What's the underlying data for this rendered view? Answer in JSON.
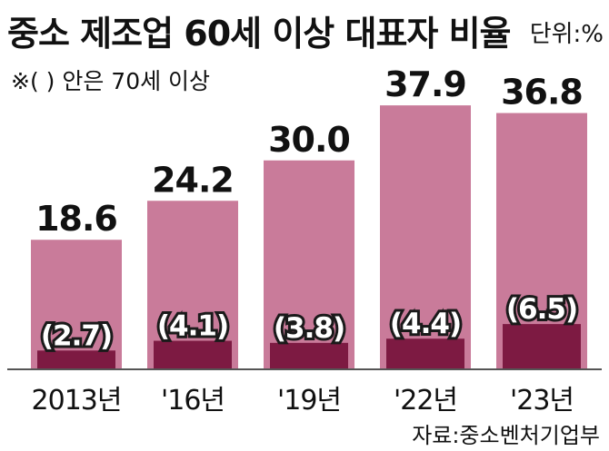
{
  "chart_data": {
    "type": "bar",
    "title": "중소 제조업 60세 이상 대표자 비율",
    "unit": "단위:%",
    "note": "※( ) 안은 70세 이상",
    "source": "자료:중소벤처기업부",
    "categories": [
      "2013년",
      "'16년",
      "'19년",
      "'22년",
      "'23년"
    ],
    "series": [
      {
        "values": [
          18.6,
          24.2,
          30.0,
          37.9,
          36.8
        ],
        "labels": [
          "18.6",
          "24.2",
          "30.0",
          "37.9",
          "36.8"
        ],
        "color": "#c97b9a"
      },
      {
        "values": [
          2.7,
          4.1,
          3.8,
          4.4,
          6.5
        ],
        "labels": [
          "(2.7)",
          "(4.1)",
          "(3.8)",
          "(4.4)",
          "(6.5)"
        ],
        "color": "#7d1a42"
      }
    ],
    "ylim": [
      0,
      40
    ],
    "grid": false
  }
}
